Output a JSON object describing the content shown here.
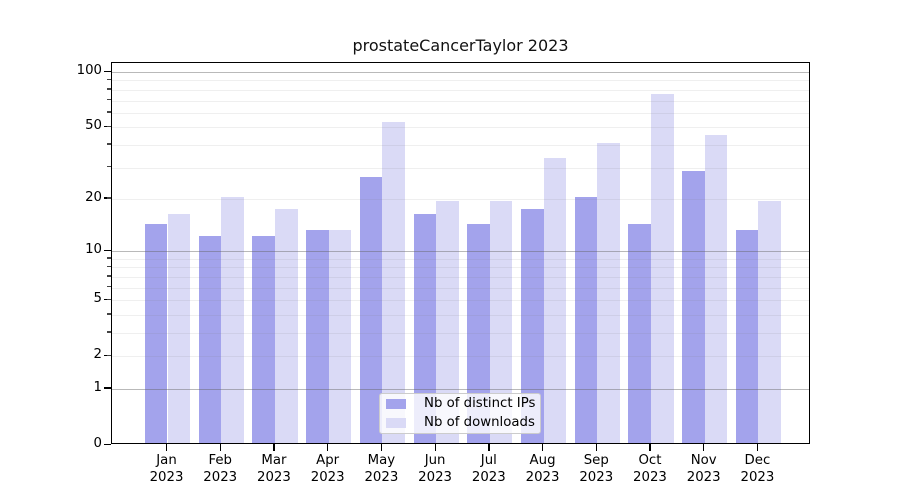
{
  "chart_data": {
    "type": "bar",
    "title": "prostateCancerTaylor 2023",
    "categories": [
      "Jan 2023",
      "Feb 2023",
      "Mar 2023",
      "Apr 2023",
      "May 2023",
      "Jun 2023",
      "Jul 2023",
      "Aug 2023",
      "Sep 2023",
      "Oct 2023",
      "Nov 2023",
      "Dec 2023"
    ],
    "series": [
      {
        "name": "Nb of distinct IPs",
        "color": "#a3a3ec",
        "values": [
          14,
          12,
          12,
          13,
          26,
          16,
          14,
          17,
          20,
          14,
          28,
          13
        ]
      },
      {
        "name": "Nb of downloads",
        "color": "#dadaf6",
        "values": [
          16,
          20,
          17,
          13,
          52,
          19,
          19,
          33,
          40,
          74,
          44,
          19
        ]
      }
    ],
    "yscale": "log1p",
    "ylim": [
      0,
      112
    ],
    "yticks": [
      100,
      50,
      20,
      10,
      5,
      2,
      1,
      0
    ],
    "yticks_minor": [
      2,
      3,
      4,
      5,
      6,
      7,
      8,
      9,
      20,
      30,
      40,
      50,
      60,
      70,
      80,
      90
    ],
    "grid_major_at": [
      1,
      10,
      100
    ],
    "grid": true,
    "legend_position": "lower center"
  },
  "legend": {
    "items": [
      {
        "label": "Nb of distinct IPs"
      },
      {
        "label": "Nb of downloads"
      }
    ]
  },
  "colors": {
    "ips_bar": "#a3a3ec",
    "downloads_bar": "#dadaf6",
    "axis": "#000000",
    "grid_major": "#b3b3b3",
    "grid_minor": "#ececec",
    "background": "#ffffff",
    "legend_border": "#cccccc"
  }
}
